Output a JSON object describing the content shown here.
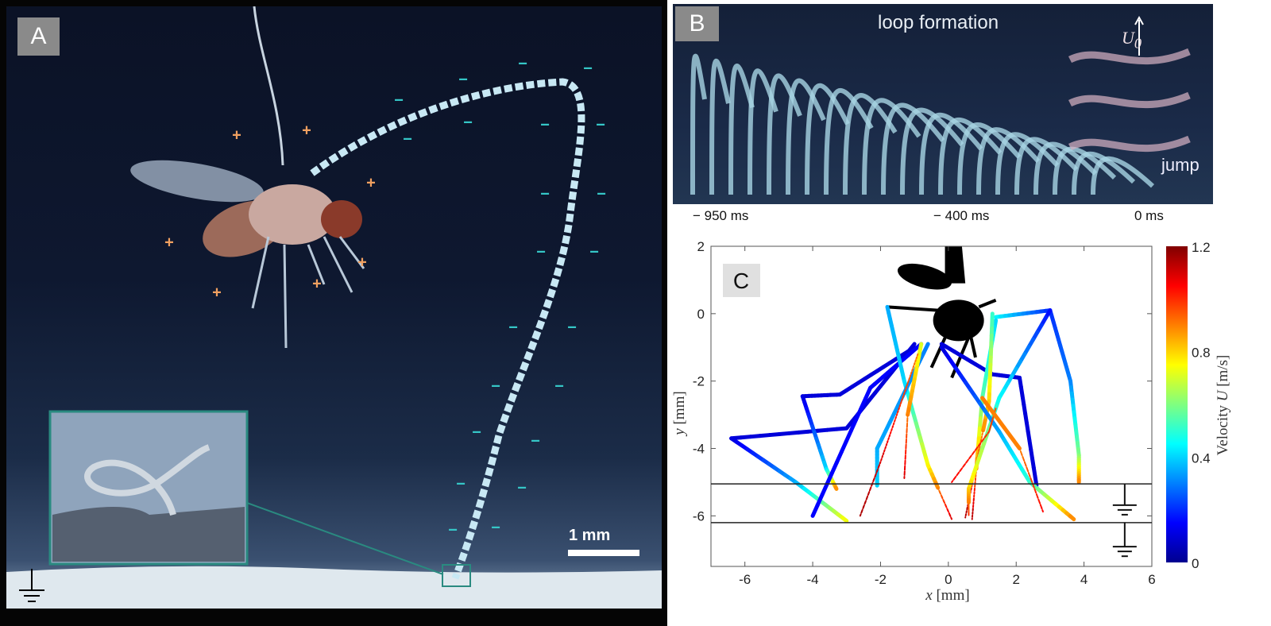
{
  "panel_a": {
    "label": "A",
    "scale_bar": "1 mm",
    "plus_sign": "+",
    "minus_sign": "−",
    "colors": {
      "positive_charge": "#f0a060",
      "negative_charge": "#36c8c8",
      "inset_border": "#2a8a80"
    }
  },
  "panel_b": {
    "label": "B",
    "title": "loop formation",
    "velocity_label": "U",
    "velocity_subscript": "0",
    "jump_label": "jump",
    "time_labels": [
      "− 950 ms",
      "− 400 ms",
      "0 ms"
    ]
  },
  "chart_data": {
    "type": "line",
    "panel_label": "C",
    "xlabel_var": "x",
    "xlabel_unit": "[mm]",
    "ylabel_var": "y",
    "ylabel_unit": "[mm]",
    "xlim": [
      -7,
      6
    ],
    "ylim": [
      -7.5,
      2
    ],
    "xticks": [
      -6,
      -4,
      -2,
      0,
      2,
      4,
      6
    ],
    "yticks": [
      2,
      0,
      -2,
      -4,
      -6
    ],
    "grid": false,
    "reference_lines_y": [
      -5.05,
      -6.2
    ],
    "colorbar": {
      "label_prefix": "Velocity",
      "label_var": "U",
      "label_unit": "[m/s]",
      "range": [
        0,
        1.2
      ],
      "ticks": [
        "0",
        "0.4",
        "0.8",
        "1.2"
      ],
      "colormap": "jet"
    },
    "series": [
      {
        "points": [
          [
            -1,
            -0.9,
            0.1
          ],
          [
            -3,
            -3.4,
            0.1
          ],
          [
            -6.4,
            -3.7,
            0.1
          ],
          [
            -4.5,
            -5.0,
            0.35
          ],
          [
            -3,
            -6.15,
            0.75
          ]
        ]
      },
      {
        "points": [
          [
            -1,
            -1,
            0.1
          ],
          [
            -3.2,
            -2.4,
            0.1
          ],
          [
            -4.3,
            -2.45,
            0.1
          ],
          [
            -3.6,
            -4.6,
            0.4
          ],
          [
            -3.3,
            -5.2,
            0.9
          ]
        ]
      },
      {
        "points": [
          [
            -0.8,
            -0.9,
            0.15
          ],
          [
            -2.3,
            -2.2,
            0.15
          ],
          [
            -4,
            -6,
            0.15
          ]
        ]
      },
      {
        "points": [
          [
            -1.8,
            0.2,
            0.35
          ],
          [
            -1.3,
            -2,
            0.4
          ],
          [
            -0.6,
            -4.5,
            0.75
          ],
          [
            0.1,
            -6.1,
            1.1
          ]
        ]
      },
      {
        "points": [
          [
            -0.6,
            -0.9,
            0.3
          ],
          [
            -2.1,
            -4,
            0.35
          ],
          [
            -2.1,
            -5.1,
            0.4
          ]
        ]
      },
      {
        "points": [
          [
            -0.8,
            -0.9,
            0.7
          ],
          [
            -1.2,
            -3,
            0.9
          ],
          [
            -1.3,
            -4.9,
            1.1
          ]
        ]
      },
      {
        "points": [
          [
            -0.9,
            -1.2,
            0.9
          ],
          [
            -2,
            -4.4,
            1.1
          ],
          [
            -2.6,
            -6,
            1.15
          ]
        ]
      },
      {
        "points": [
          [
            -0.2,
            -0.9,
            0.1
          ],
          [
            1.3,
            -1.8,
            0.1
          ],
          [
            2.1,
            -1.9,
            0.1
          ],
          [
            2.6,
            -5.1,
            0.1
          ]
        ]
      },
      {
        "points": [
          [
            1.4,
            -0.1,
            0.45
          ],
          [
            3,
            0.1,
            0.2
          ],
          [
            3.6,
            -2,
            0.3
          ],
          [
            3.85,
            -4.2,
            0.6
          ],
          [
            3.85,
            -5,
            0.9
          ]
        ]
      },
      {
        "points": [
          [
            1.4,
            -0.2,
            0.4
          ],
          [
            1.0,
            -2.5,
            0.55
          ],
          [
            0.7,
            -6.1,
            1.15
          ]
        ]
      },
      {
        "points": [
          [
            1.3,
            0,
            0.5
          ],
          [
            1.2,
            -2.6,
            0.8
          ],
          [
            0.5,
            -6.05,
            1.15
          ]
        ]
      },
      {
        "points": [
          [
            3,
            0.1,
            0.15
          ],
          [
            1.5,
            -2.5,
            0.45
          ],
          [
            0.6,
            -5.2,
            0.8
          ],
          [
            0.6,
            -6,
            1.0
          ]
        ]
      },
      {
        "points": [
          [
            -0.2,
            -1,
            0.1
          ],
          [
            1.5,
            -3.5,
            0.35
          ],
          [
            2.4,
            -5,
            0.5
          ],
          [
            3.7,
            -6.1,
            0.9
          ]
        ]
      },
      {
        "points": [
          [
            0.1,
            -5,
            1.05
          ],
          [
            1.2,
            -3.5,
            1.0
          ],
          [
            1.4,
            -2.8,
            0.95
          ]
        ]
      },
      {
        "points": [
          [
            1.0,
            -2.5,
            0.9
          ],
          [
            2.1,
            -4,
            0.9
          ],
          [
            2.8,
            -5.9,
            1.05
          ]
        ]
      }
    ]
  }
}
